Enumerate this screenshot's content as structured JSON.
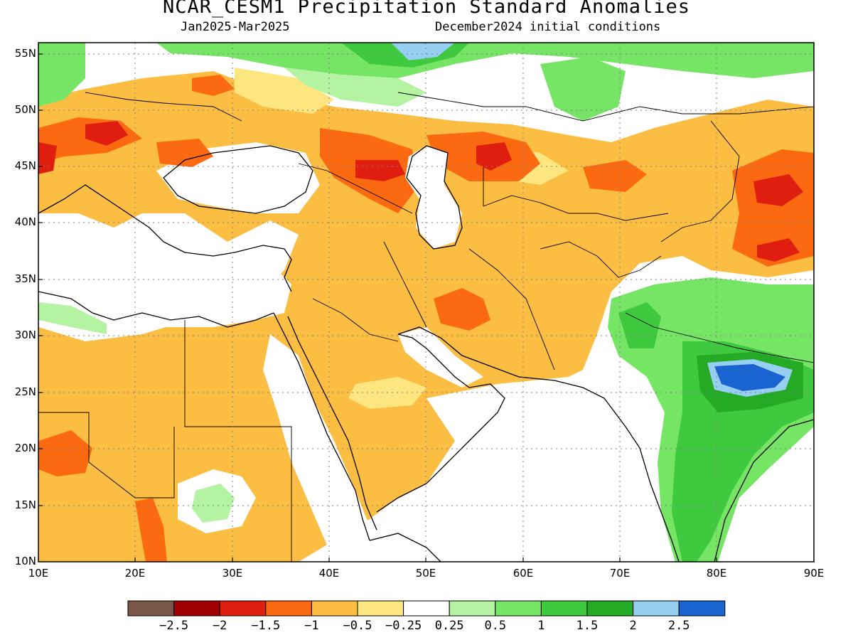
{
  "header": {
    "title": "NCAR_CESM1 Precipitation Standard Anomalies",
    "period": "Jan2025-Mar2025",
    "init": "December2024 initial conditions"
  },
  "axes": {
    "lat_labels": [
      "55N",
      "50N",
      "45N",
      "40N",
      "35N",
      "30N",
      "25N",
      "20N",
      "15N",
      "10N"
    ],
    "lon_labels": [
      "10E",
      "20E",
      "30E",
      "40E",
      "50E",
      "60E",
      "70E",
      "80E",
      "90E"
    ],
    "lat_range": [
      10,
      56
    ],
    "lon_range": [
      10,
      90
    ]
  },
  "colorbar": {
    "colors": [
      "#7a5646",
      "#a00000",
      "#e01e10",
      "#fb6a10",
      "#fbbd42",
      "#fde680",
      "#ffffff",
      "#b4f3a2",
      "#76e566",
      "#3fc93f",
      "#25aa25",
      "#96cff2",
      "#1a64d2"
    ],
    "labels": [
      "-2.5",
      "-2",
      "-1.5",
      "-1",
      "-0.5",
      "-0.25",
      "0.25",
      "0.5",
      "1",
      "1.5",
      "2",
      "2.5"
    ]
  },
  "legend_colors": {
    "orange_light": "#fbbd42",
    "orange": "#fb6a10",
    "red": "#e01e10",
    "yellow": "#fde680",
    "green_light": "#b4f3a2",
    "green": "#76e566",
    "green_mid": "#3fc93f",
    "green_dark": "#25aa25",
    "blue_light": "#96cff2",
    "blue": "#1a64d2"
  }
}
